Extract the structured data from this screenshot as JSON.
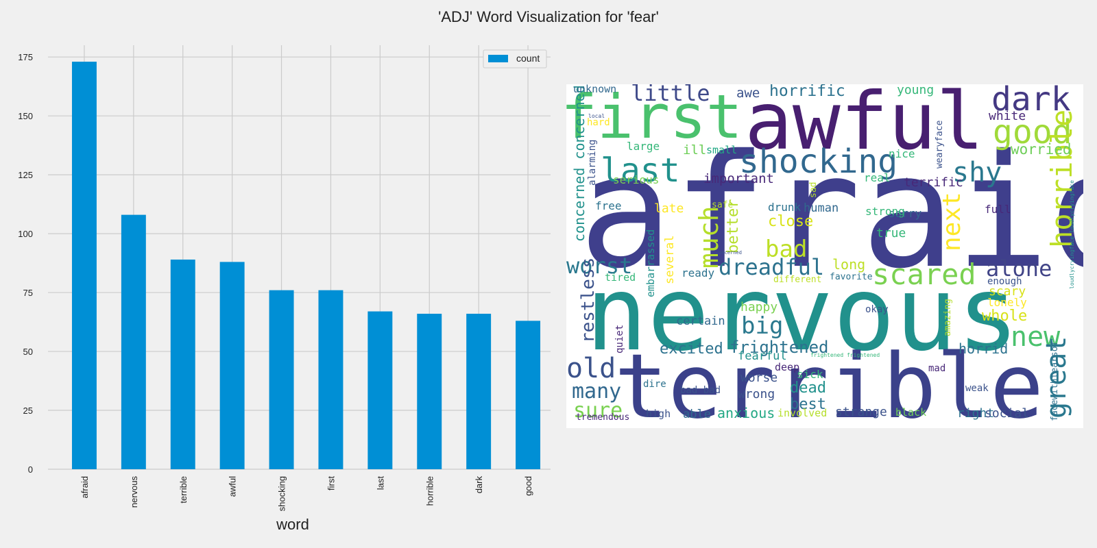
{
  "title": "'ADJ' Word Visualization for 'fear'",
  "chart_data": [
    {
      "type": "bar",
      "categories": [
        "afraid",
        "nervous",
        "terrible",
        "awful",
        "shocking",
        "first",
        "last",
        "horrible",
        "dark",
        "good"
      ],
      "series": [
        {
          "name": "count",
          "values": [
            173,
            108,
            89,
            88,
            76,
            76,
            67,
            66,
            66,
            63
          ],
          "color": "#008fd5"
        }
      ],
      "xlabel": "word",
      "ylabel": "",
      "ylim": [
        0,
        180
      ],
      "yticks": [
        0,
        25,
        50,
        75,
        100,
        125,
        150,
        175
      ],
      "grid": true,
      "legend": "top-right"
    },
    {
      "type": "wordcloud",
      "background": "#ffffff",
      "words": [
        {
          "text": "afraid",
          "weight": 1.0,
          "color": "#3f3f8c"
        },
        {
          "text": "nervous",
          "weight": 0.94,
          "color": "#21918c"
        },
        {
          "text": "terrible",
          "weight": 0.82,
          "color": "#3b418a"
        },
        {
          "text": "awful",
          "weight": 0.66,
          "color": "#481f70"
        },
        {
          "text": "first",
          "weight": 0.6,
          "color": "#4ac16d"
        },
        {
          "text": "dark",
          "weight": 0.36,
          "color": "#443983"
        },
        {
          "text": "shocking",
          "weight": 0.38,
          "color": "#31688e"
        },
        {
          "text": "last",
          "weight": 0.36,
          "color": "#21918c"
        },
        {
          "text": "good",
          "weight": 0.36,
          "color": "#a0da39"
        },
        {
          "text": "scared",
          "weight": 0.34,
          "color": "#7ad151"
        },
        {
          "text": "horrible",
          "weight": 0.34,
          "color": "#bddf26"
        },
        {
          "text": "shy",
          "weight": 0.3,
          "color": "#2a788e"
        },
        {
          "text": "new",
          "weight": 0.3,
          "color": "#4ac16d"
        },
        {
          "text": "great",
          "weight": 0.3,
          "color": "#2a788e"
        },
        {
          "text": "old",
          "weight": 0.3,
          "color": "#3b528b"
        },
        {
          "text": "much",
          "weight": 0.3,
          "color": "#b5de2b"
        },
        {
          "text": "next",
          "weight": 0.3,
          "color": "#fde725"
        },
        {
          "text": "little",
          "weight": 0.26,
          "color": "#3e4989"
        },
        {
          "text": "dreadful",
          "weight": 0.26,
          "color": "#2c728e"
        },
        {
          "text": "worst",
          "weight": 0.26,
          "color": "#2a788e"
        },
        {
          "text": "alone",
          "weight": 0.26,
          "color": "#414487"
        },
        {
          "text": "bad",
          "weight": 0.26,
          "color": "#bddf26"
        },
        {
          "text": "big",
          "weight": 0.26,
          "color": "#2a788e"
        },
        {
          "text": "many",
          "weight": 0.26,
          "color": "#31688e"
        },
        {
          "text": "sure",
          "weight": 0.24,
          "color": "#7ad151"
        },
        {
          "text": "restless",
          "weight": 0.24,
          "color": "#3b528b"
        },
        {
          "text": "frightened",
          "weight": 0.22,
          "color": "#2c728e"
        },
        {
          "text": "horrific",
          "weight": 0.2,
          "color": "#2c728e"
        },
        {
          "text": "worried",
          "weight": 0.2,
          "color": "#6ece58"
        },
        {
          "text": "concerned concerned",
          "weight": 0.2,
          "color": "#21918c"
        },
        {
          "text": "excited",
          "weight": 0.2,
          "color": "#2c728e"
        },
        {
          "text": "close",
          "weight": 0.2,
          "color": "#d8e219"
        },
        {
          "text": "better",
          "weight": 0.2,
          "color": "#b5de2b"
        },
        {
          "text": "whole",
          "weight": 0.2,
          "color": "#d8e219"
        },
        {
          "text": "dead",
          "weight": 0.2,
          "color": "#21918c"
        },
        {
          "text": "best",
          "weight": 0.2,
          "color": "#2c728e"
        },
        {
          "text": "long",
          "weight": 0.18,
          "color": "#bddf26"
        },
        {
          "text": "horrid",
          "weight": 0.18,
          "color": "#2c728e"
        },
        {
          "text": "anxious",
          "weight": 0.18,
          "color": "#22a884"
        },
        {
          "text": "important",
          "weight": 0.17,
          "color": "#482878"
        },
        {
          "text": "terrific",
          "weight": 0.17,
          "color": "#482878"
        },
        {
          "text": "young",
          "weight": 0.16,
          "color": "#35b779"
        },
        {
          "text": "awe",
          "weight": 0.16,
          "color": "#3b528b"
        },
        {
          "text": "white",
          "weight": 0.16,
          "color": "#482878"
        },
        {
          "text": "true",
          "weight": 0.16,
          "color": "#35b779"
        },
        {
          "text": "happy",
          "weight": 0.16,
          "color": "#7ad151"
        },
        {
          "text": "certain",
          "weight": 0.16,
          "color": "#31688e"
        },
        {
          "text": "scary",
          "weight": 0.16,
          "color": "#d8e219"
        },
        {
          "text": "worse",
          "weight": 0.16,
          "color": "#3b528b"
        },
        {
          "text": "wrong",
          "weight": 0.16,
          "color": "#3b528b"
        },
        {
          "text": "strange",
          "weight": 0.16,
          "color": "#3b528b"
        },
        {
          "text": "right",
          "weight": 0.16,
          "color": "#2c728e"
        },
        {
          "text": "social",
          "weight": 0.16,
          "color": "#3b528b"
        },
        {
          "text": "fearful",
          "weight": 0.16,
          "color": "#21918c"
        },
        {
          "text": "serious",
          "weight": 0.15,
          "color": "#7ad151"
        },
        {
          "text": "ill",
          "weight": 0.16,
          "color": "#6ece58"
        },
        {
          "text": "human",
          "weight": 0.16,
          "color": "#31688e"
        },
        {
          "text": "late",
          "weight": 0.16,
          "color": "#fde725"
        },
        {
          "text": "lonely",
          "weight": 0.15,
          "color": "#fde725"
        },
        {
          "text": "sick",
          "weight": 0.15,
          "color": "#35b779"
        },
        {
          "text": "able",
          "weight": 0.15,
          "color": "#31688e"
        },
        {
          "text": "several",
          "weight": 0.15,
          "color": "#fde725"
        },
        {
          "text": "embarrassed",
          "weight": 0.15,
          "color": "#21918c"
        },
        {
          "text": "drunk",
          "weight": 0.14,
          "color": "#2c728e"
        },
        {
          "text": "unknown",
          "weight": 0.13,
          "color": "#31688e"
        },
        {
          "text": "large",
          "weight": 0.13,
          "color": "#35b779"
        },
        {
          "text": "small",
          "weight": 0.13,
          "color": "#22a884"
        },
        {
          "text": "nice",
          "weight": 0.13,
          "color": "#35b779"
        },
        {
          "text": "real",
          "weight": 0.13,
          "color": "#35b779"
        },
        {
          "text": "sorry",
          "weight": 0.14,
          "color": "#31688e"
        },
        {
          "text": "strong",
          "weight": 0.13,
          "color": "#35b779"
        },
        {
          "text": "full",
          "weight": 0.14,
          "color": "#482878"
        },
        {
          "text": "free",
          "weight": 0.14,
          "color": "#2c728e"
        },
        {
          "text": "ready",
          "weight": 0.14,
          "color": "#2c728e"
        },
        {
          "text": "tired",
          "weight": 0.13,
          "color": "#35b779"
        },
        {
          "text": "different",
          "weight": 0.12,
          "color": "#bddf26"
        },
        {
          "text": "favorite",
          "weight": 0.12,
          "color": "#2c728e"
        },
        {
          "text": "enough",
          "weight": 0.12,
          "color": "#3b528b"
        },
        {
          "text": "okay",
          "weight": 0.13,
          "color": "#3b528b"
        },
        {
          "text": "deep",
          "weight": 0.14,
          "color": "#482878"
        },
        {
          "text": "mad",
          "weight": 0.13,
          "color": "#482878"
        },
        {
          "text": "weak",
          "weight": 0.12,
          "color": "#3b528b"
        },
        {
          "text": "bad bad",
          "weight": 0.14,
          "color": "#3b528b"
        },
        {
          "text": "high",
          "weight": 0.14,
          "color": "#3b528b"
        },
        {
          "text": "involved",
          "weight": 0.13,
          "color": "#b5de2b"
        },
        {
          "text": "black",
          "weight": 0.13,
          "color": "#6ece58"
        },
        {
          "text": "dire",
          "weight": 0.13,
          "color": "#2c728e"
        },
        {
          "text": "tremendous",
          "weight": 0.12,
          "color": "#482878"
        },
        {
          "text": "hard",
          "weight": 0.13,
          "color": "#fde725"
        },
        {
          "text": "alarming",
          "weight": 0.13,
          "color": "#3b528b"
        },
        {
          "text": "quiet",
          "weight": 0.13,
          "color": "#482878"
        },
        {
          "text": "safe",
          "weight": 0.11,
          "color": "#b5de2b"
        },
        {
          "text": "sad",
          "weight": 0.12,
          "color": "#b5de2b"
        },
        {
          "text": "amazing",
          "weight": 0.11,
          "color": "#b5de2b"
        },
        {
          "text": "wearyface",
          "weight": 0.11,
          "color": "#3b528b"
        },
        {
          "text": "facewithtearsof",
          "weight": 0.11,
          "color": "#2c728e"
        },
        {
          "text": "loudlycryingface loudlycryingface",
          "weight": 0.06,
          "color": "#21918c"
        },
        {
          "text": "frightened frightened",
          "weight": 0.05,
          "color": "#35b779"
        },
        {
          "text": "local",
          "weight": 0.05,
          "color": "#3b528b"
        },
        {
          "text": "concerned",
          "weight": 0.05,
          "color": "#3b528b"
        }
      ]
    }
  ]
}
